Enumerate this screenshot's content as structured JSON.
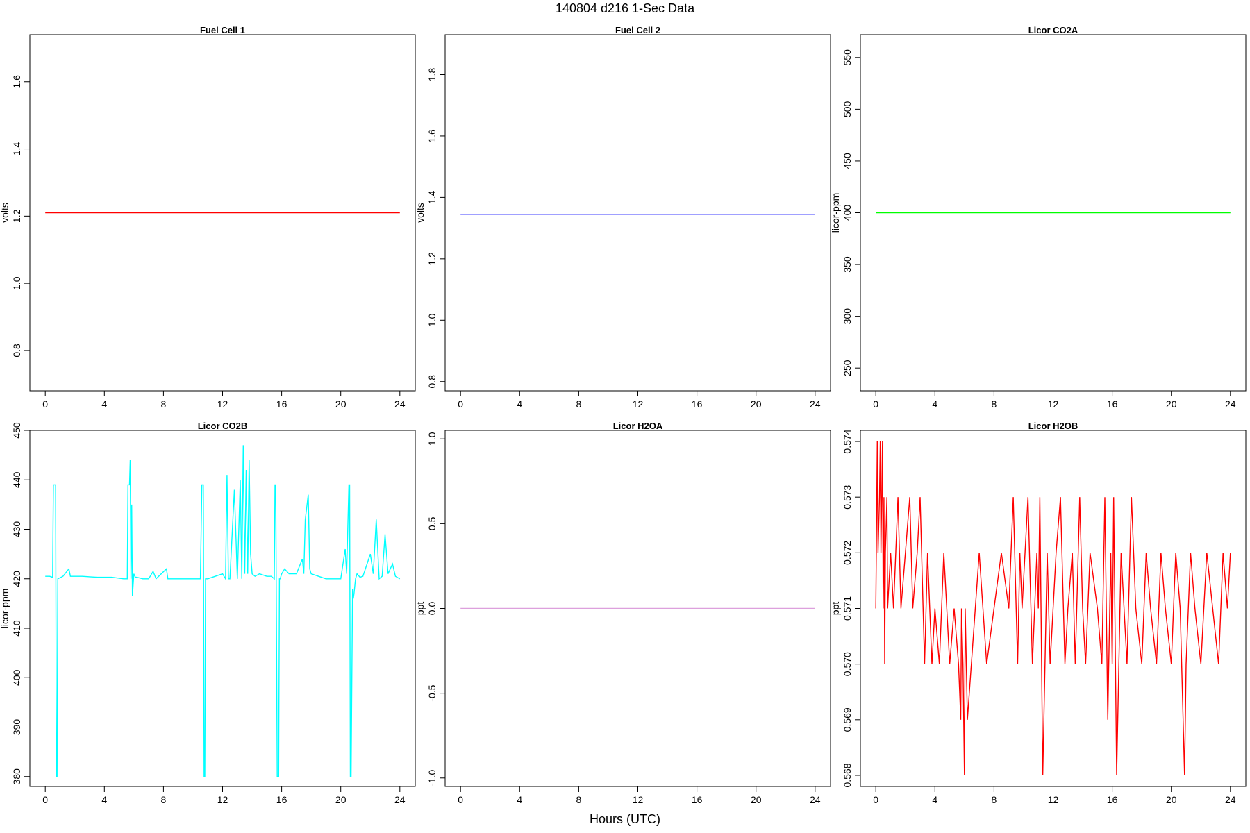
{
  "page_title": "140804   d216   1-Sec Data",
  "x_label": "Hours (UTC)",
  "chart_data": [
    {
      "type": "line",
      "title": "Fuel Cell 1",
      "ylabel": "volts",
      "color": "#ff0000",
      "xlim": [
        0,
        24
      ],
      "ylim": [
        0.68,
        1.74
      ],
      "xticks": [
        "0",
        "4",
        "8",
        "12",
        "16",
        "20",
        "24"
      ],
      "yticks": [
        "0.8",
        "1.0",
        "1.2",
        "1.4",
        "1.6"
      ],
      "x": [
        0,
        24
      ],
      "values": [
        1.21,
        1.21
      ]
    },
    {
      "type": "line",
      "title": "Fuel Cell 2",
      "ylabel": "volts",
      "color": "#0000ff",
      "xlim": [
        0,
        24
      ],
      "ylim": [
        0.77,
        1.93
      ],
      "xticks": [
        "0",
        "4",
        "8",
        "12",
        "16",
        "20",
        "24"
      ],
      "yticks": [
        "0.8",
        "1.0",
        "1.2",
        "1.4",
        "1.6",
        "1.8"
      ],
      "x": [
        0,
        24
      ],
      "values": [
        1.345,
        1.345
      ]
    },
    {
      "type": "line",
      "title": "Licor CO2A",
      "ylabel": "licor-ppm",
      "color": "#00ff00",
      "xlim": [
        0,
        24
      ],
      "ylim": [
        228,
        572
      ],
      "xticks": [
        "0",
        "4",
        "8",
        "12",
        "16",
        "20",
        "24"
      ],
      "yticks": [
        "250",
        "300",
        "350",
        "400",
        "450",
        "500",
        "550"
      ],
      "x": [
        0,
        24
      ],
      "values": [
        400,
        400
      ]
    },
    {
      "type": "line",
      "title": "Licor CO2B",
      "ylabel": "licor-ppm",
      "color": "#00ffff",
      "xlim": [
        0,
        24
      ],
      "ylim": [
        378,
        450
      ],
      "xticks": [
        "0",
        "4",
        "8",
        "12",
        "16",
        "20",
        "24"
      ],
      "yticks": [
        "380",
        "390",
        "400",
        "410",
        "420",
        "430",
        "440",
        "450"
      ],
      "x": [
        0,
        0.3,
        0.5,
        0.55,
        0.6,
        0.7,
        0.75,
        0.8,
        0.85,
        1.2,
        1.6,
        1.7,
        2.5,
        3.5,
        4.5,
        5.3,
        5.55,
        5.6,
        5.7,
        5.75,
        5.8,
        5.85,
        5.9,
        6.0,
        6.1,
        6.2,
        6.6,
        7.0,
        7.3,
        7.5,
        8.2,
        8.3,
        9.0,
        10.2,
        10.5,
        10.6,
        10.7,
        10.75,
        10.8,
        10.85,
        10.9,
        11.0,
        11.5,
        12.0,
        12.2,
        12.3,
        12.4,
        12.5,
        12.8,
        13.0,
        13.2,
        13.3,
        13.4,
        13.5,
        13.6,
        13.7,
        13.8,
        13.9,
        14.0,
        14.2,
        14.5,
        15.0,
        15.3,
        15.5,
        15.55,
        15.6,
        15.7,
        15.8,
        15.85,
        15.9,
        16.0,
        16.2,
        16.5,
        17.0,
        17.4,
        17.5,
        17.6,
        17.8,
        17.9,
        18.0,
        18.5,
        19.0,
        20.0,
        20.3,
        20.4,
        20.55,
        20.6,
        20.65,
        20.7,
        20.8,
        20.85,
        20.9,
        21.0,
        21.1,
        21.3,
        21.5,
        22.0,
        22.2,
        22.4,
        22.6,
        22.8,
        23.0,
        23.2,
        23.5,
        23.7,
        24.0
      ],
      "values": [
        420.5,
        420.5,
        420.3,
        439,
        439,
        439,
        380,
        380,
        420,
        420.5,
        422,
        420.5,
        420.5,
        420.3,
        420.3,
        420,
        420,
        439,
        439,
        444,
        420,
        435,
        416.5,
        421,
        420.3,
        420.3,
        420,
        420,
        421.5,
        420,
        422,
        420,
        420,
        420,
        420,
        439,
        439,
        380,
        380,
        420,
        420,
        420,
        420.5,
        421,
        420,
        441,
        420,
        420,
        438,
        420,
        440,
        420,
        447,
        421,
        442,
        421,
        444,
        425,
        421,
        420.5,
        421,
        420.5,
        420.5,
        420,
        439,
        439,
        380,
        380,
        420,
        420,
        421,
        422,
        421,
        421,
        424,
        421,
        432,
        437,
        422,
        421,
        420.5,
        420,
        420,
        426,
        421,
        439,
        439,
        380,
        380,
        418,
        416,
        417,
        420,
        421,
        420.3,
        420.5,
        425,
        421,
        432,
        420,
        420.5,
        429,
        421,
        423,
        420.5,
        420
      ]
    },
    {
      "type": "line",
      "title": "Licor H2OA",
      "ylabel": "ppt",
      "color": "#dda0dd",
      "xlim": [
        0,
        24
      ],
      "ylim": [
        -1.05,
        1.05
      ],
      "xticks": [
        "0",
        "4",
        "8",
        "12",
        "16",
        "20",
        "24"
      ],
      "yticks": [
        "-1.0",
        "-0.5",
        "0.0",
        "0.5",
        "1.0"
      ],
      "x": [
        0,
        24
      ],
      "values": [
        0,
        0
      ]
    },
    {
      "type": "line",
      "title": "Licor H2OB",
      "ylabel": "ppt",
      "color": "#ff0000",
      "xlim": [
        0,
        24
      ],
      "ylim": [
        0.5678,
        0.5742
      ],
      "xticks": [
        "0",
        "4",
        "8",
        "12",
        "16",
        "20",
        "24"
      ],
      "yticks": [
        "0.568",
        "0.569",
        "0.570",
        "0.571",
        "0.572",
        "0.573",
        "0.574"
      ],
      "x": [
        0,
        0.1,
        0.15,
        0.25,
        0.3,
        0.35,
        0.4,
        0.45,
        0.5,
        0.55,
        0.6,
        0.65,
        0.75,
        0.8,
        1.0,
        1.2,
        1.5,
        1.7,
        2.0,
        2.3,
        2.5,
        2.8,
        3.0,
        3.3,
        3.5,
        3.8,
        4.0,
        4.3,
        4.6,
        5.0,
        5.3,
        5.6,
        5.75,
        5.8,
        5.9,
        6.0,
        6.05,
        6.2,
        7.0,
        7.5,
        8.0,
        8.5,
        9.0,
        9.3,
        9.6,
        9.75,
        9.9,
        10.3,
        10.6,
        10.9,
        11.0,
        11.1,
        11.3,
        11.6,
        11.8,
        12.0,
        12.2,
        12.5,
        12.8,
        13.0,
        13.3,
        13.5,
        13.8,
        14.0,
        14.2,
        14.5,
        15.0,
        15.3,
        15.5,
        15.7,
        15.9,
        16.0,
        16.1,
        16.3,
        16.6,
        17.0,
        17.3,
        17.6,
        18.0,
        18.3,
        18.6,
        19.0,
        19.3,
        19.6,
        20.0,
        20.3,
        20.6,
        20.9,
        21.0,
        21.3,
        21.6,
        22.0,
        22.4,
        22.8,
        23.2,
        23.5,
        23.8,
        24.0
      ],
      "values": [
        0.571,
        0.574,
        0.572,
        0.573,
        0.574,
        0.572,
        0.573,
        0.574,
        0.571,
        0.573,
        0.57,
        0.572,
        0.573,
        0.571,
        0.572,
        0.571,
        0.573,
        0.571,
        0.572,
        0.573,
        0.571,
        0.572,
        0.573,
        0.57,
        0.572,
        0.57,
        0.571,
        0.57,
        0.572,
        0.57,
        0.571,
        0.57,
        0.569,
        0.571,
        0.57,
        0.568,
        0.571,
        0.569,
        0.572,
        0.57,
        0.571,
        0.572,
        0.571,
        0.573,
        0.57,
        0.572,
        0.571,
        0.573,
        0.57,
        0.572,
        0.571,
        0.573,
        0.568,
        0.572,
        0.57,
        0.571,
        0.572,
        0.573,
        0.57,
        0.571,
        0.572,
        0.57,
        0.573,
        0.571,
        0.57,
        0.572,
        0.571,
        0.57,
        0.573,
        0.569,
        0.572,
        0.57,
        0.573,
        0.568,
        0.572,
        0.57,
        0.573,
        0.571,
        0.57,
        0.572,
        0.571,
        0.57,
        0.572,
        0.571,
        0.57,
        0.572,
        0.571,
        0.568,
        0.57,
        0.572,
        0.571,
        0.57,
        0.572,
        0.571,
        0.57,
        0.572,
        0.571,
        0.572
      ]
    }
  ]
}
